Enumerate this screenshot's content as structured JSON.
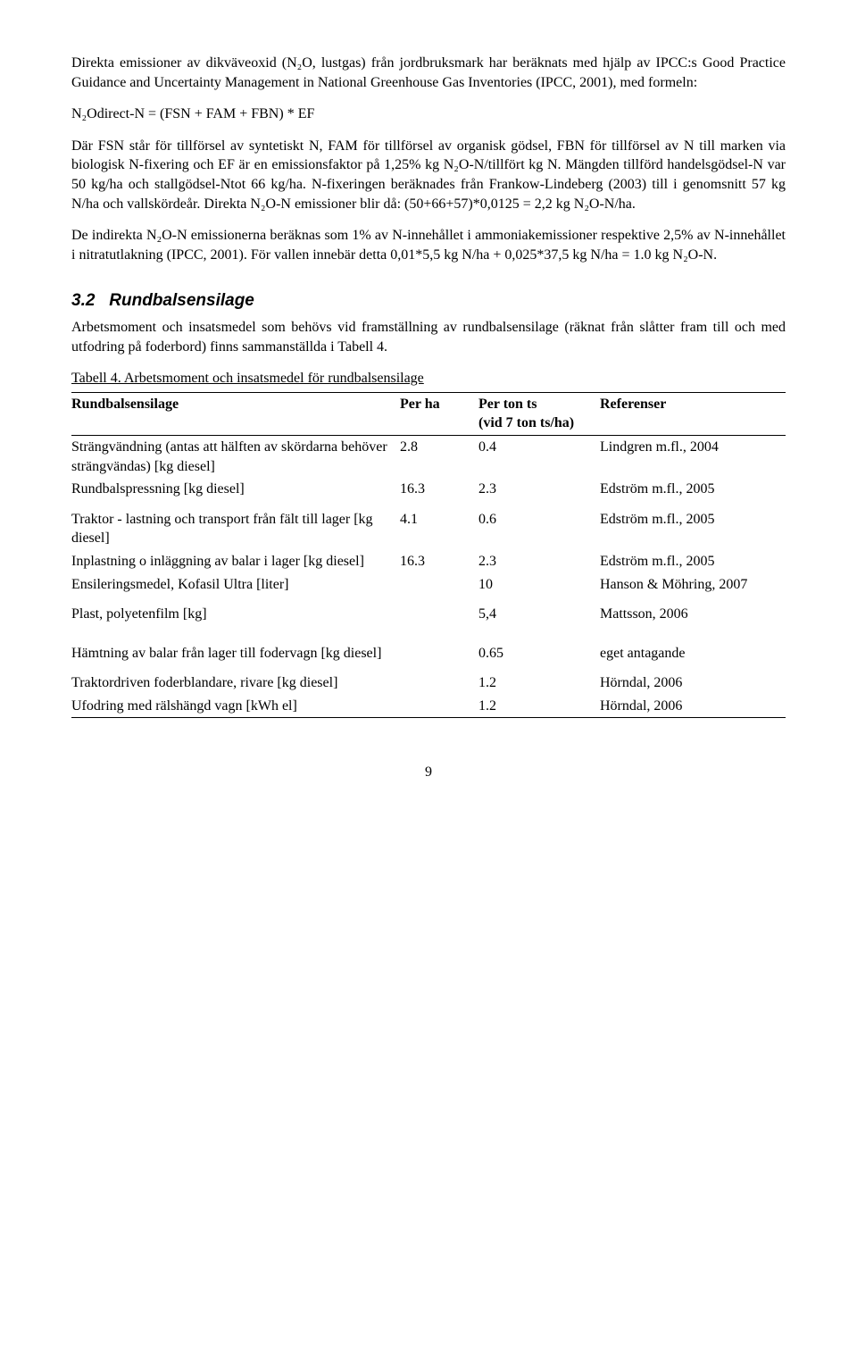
{
  "para1": "Direkta emissioner av dikväveoxid (N₂O, lustgas) från jordbruksmark har beräknats med hjälp av IPCC:s Good Practice Guidance and Uncertainty Management in National Greenhouse Gas Inventories (IPCC, 2001), med formeln:",
  "formula": "N₂Odirect-N = (FSN + FAM + FBN) * EF",
  "para2": "Där FSN står för tillförsel av syntetiskt N, FAM för tillförsel av organisk gödsel, FBN för tillförsel av N till marken via biologisk N-fixering och EF är en emissionsfaktor på 1,25% kg N₂O-N/tillfört kg N. Mängden tillförd handelsgödsel-N var 50 kg/ha och stallgödsel-Ntot 66 kg/ha. N-fixeringen beräknades från Frankow-Lindeberg (2003) till i genomsnitt 57 kg N/ha och vallskördeår. Direkta N₂O-N emissioner blir då: (50+66+57)*0,0125 = 2,2 kg N₂O-N/ha.",
  "para3": "De indirekta N₂O-N emissionerna beräknas som 1% av N-innehållet i ammoniakemissioner respektive 2,5% av N-innehållet i nitratutlakning (IPCC, 2001). För vallen innebär detta 0,01*5,5 kg N/ha + 0,025*37,5 kg N/ha = 1.0 kg N₂O-N.",
  "sec_no": "3.2",
  "sec_title": "Rundbalsensilage",
  "para4": "Arbetsmoment och insatsmedel som behövs vid framställning av rundbalsensilage (räknat från slåtter fram till och med utfodring på foderbord) finns sammanställda i Tabell 4.",
  "tab_caption": "Tabell 4. Arbetsmoment och insatsmedel för rundbalsensilage",
  "th1": "Rundbalsensilage",
  "th2": "Per ha",
  "th3a": "Per ton ts",
  "th3b": "(vid 7 ton ts/ha)",
  "th4": "Referenser",
  "r1c1": "Strängvändning (antas att hälften av skördarna behöver strängvändas) [kg diesel]",
  "r1c2": "2.8",
  "r1c3": "0.4",
  "r1c4": "Lindgren m.fl., 2004",
  "r2c1": "Rundbalspressning [kg diesel]",
  "r2c2": "16.3",
  "r2c3": "2.3",
  "r2c4": "Edström m.fl., 2005",
  "r3c1": "Traktor - lastning och transport från fält till lager [kg diesel]",
  "r3c2": "4.1",
  "r3c3": "0.6",
  "r3c4": "Edström m.fl., 2005",
  "r4c1": "Inplastning o inläggning av balar i lager [kg diesel]",
  "r4c2": "16.3",
  "r4c3": "2.3",
  "r4c4": "Edström m.fl., 2005",
  "r5c1": "Ensileringsmedel, Kofasil Ultra [liter]",
  "r5c2": "",
  "r5c3": "10",
  "r5c4": "Hanson & Möhring, 2007",
  "r6c1": "Plast, polyetenfilm [kg]",
  "r6c2": "",
  "r6c3": "5,4",
  "r6c4": "Mattsson, 2006",
  "r7c1": "Hämtning av balar från lager till fodervagn [kg diesel]",
  "r7c2": "",
  "r7c3": "0.65",
  "r7c4": "eget antagande",
  "r8c1": "Traktordriven foderblandare, rivare [kg diesel]",
  "r8c2": "",
  "r8c3": "1.2",
  "r8c4": "Hörndal, 2006",
  "r9c1": "Ufodring med rälshängd vagn [kWh el]",
  "r9c2": "",
  "r9c3": "1.2",
  "r9c4": "Hörndal, 2006",
  "pagenum": "9"
}
